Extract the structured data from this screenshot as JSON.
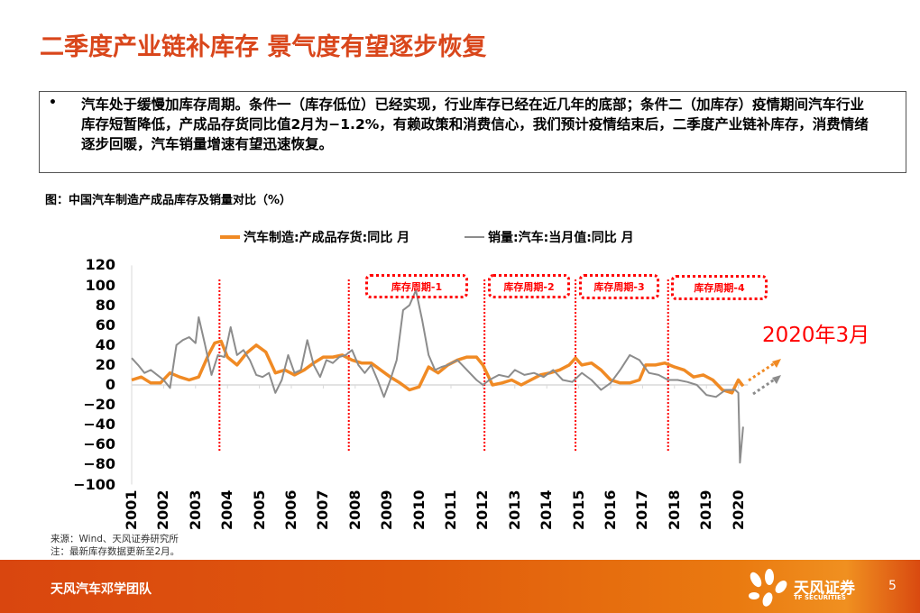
{
  "slide": {
    "title": "二季度产业链补库存 景气度有望逐步恢复",
    "summary": {
      "bullet": "•",
      "text": "汽车处于缓慢加库存周期。条件一（库存低位）已经实现，行业库存已经在近几年的底部；条件二（加库存）疫情期间汽车行业库存短暂降低，产成品存货同比值2月为−1.2%，有赖政策和消费信心，我们预计疫情结束后，二季度产业链补库存，消费情绪逐步回暖，汽车销量增速有望迅速恢复。"
    },
    "figure_caption": "图：中国汽车制造产成品库存及销量对比（%）",
    "source": "来源：Wind、天风证券研究所",
    "note": "注：最新库存数据更新至2月。",
    "annotation": "2020年3月",
    "footer": {
      "team": "天风汽车邓学团队",
      "brand": "天风证券",
      "brand_en": "TF SECURITIES",
      "page": "5"
    }
  },
  "colors": {
    "title": "#d9461b",
    "inventory_series": "#f08a24",
    "sales_series": "#8c8c8c",
    "cycle_marker": "#ff0000",
    "footer": "#e05a0c"
  },
  "chart_data": {
    "type": "line",
    "title": "中国汽车制造产成品库存及销量对比（%）",
    "xlabel": "",
    "ylabel": "%",
    "ylim": [
      -100,
      120
    ],
    "yticks": [
      "120",
      "100",
      "80",
      "60",
      "40",
      "20",
      "0",
      "−20",
      "−40",
      "−60",
      "−80",
      "−100"
    ],
    "xticks": [
      "2001",
      "2002",
      "2003",
      "2004",
      "2005",
      "2006",
      "2007",
      "2008",
      "2009",
      "2010",
      "2011",
      "2012",
      "2013",
      "2014",
      "2015",
      "2016",
      "2017",
      "2018",
      "2019",
      "2020"
    ],
    "legend_position": "top",
    "grid": false,
    "series": [
      {
        "name": "汽车制造:产成品存货:同比 月",
        "color": "#f08a24",
        "x": [
          2001.0,
          2001.3,
          2001.6,
          2001.9,
          2002.2,
          2002.5,
          2002.8,
          2003.1,
          2003.4,
          2003.6,
          2003.8,
          2004.0,
          2004.3,
          2004.6,
          2004.9,
          2005.2,
          2005.5,
          2005.8,
          2006.1,
          2006.4,
          2006.7,
          2007.0,
          2007.3,
          2007.6,
          2007.9,
          2008.2,
          2008.5,
          2008.8,
          2009.1,
          2009.4,
          2009.7,
          2010.0,
          2010.3,
          2010.6,
          2010.9,
          2011.2,
          2011.5,
          2011.8,
          2012.0,
          2012.3,
          2012.6,
          2012.9,
          2013.2,
          2013.5,
          2013.8,
          2014.1,
          2014.4,
          2014.7,
          2014.9,
          2015.1,
          2015.4,
          2015.7,
          2016.0,
          2016.3,
          2016.6,
          2016.9,
          2017.1,
          2017.4,
          2017.7,
          2018.0,
          2018.3,
          2018.6,
          2018.9,
          2019.2,
          2019.5,
          2019.8,
          2020.0,
          2020.15
        ],
        "values": [
          5,
          8,
          2,
          2,
          12,
          8,
          5,
          8,
          30,
          42,
          44,
          28,
          20,
          32,
          40,
          33,
          12,
          15,
          10,
          15,
          22,
          28,
          28,
          30,
          25,
          22,
          22,
          15,
          8,
          2,
          -5,
          -2,
          18,
          12,
          20,
          25,
          28,
          28,
          20,
          0,
          2,
          5,
          0,
          5,
          10,
          12,
          15,
          20,
          27,
          20,
          22,
          15,
          5,
          2,
          2,
          5,
          20,
          20,
          22,
          18,
          15,
          8,
          10,
          5,
          -5,
          -8,
          5,
          -1.2
        ]
      },
      {
        "name": "销量:汽车:当月值:同比 月",
        "color": "#8c8c8c",
        "x": [
          2001.0,
          2001.2,
          2001.4,
          2001.6,
          2001.8,
          2002.0,
          2002.2,
          2002.4,
          2002.6,
          2002.8,
          2003.0,
          2003.1,
          2003.3,
          2003.5,
          2003.7,
          2003.9,
          2004.1,
          2004.3,
          2004.5,
          2004.7,
          2004.9,
          2005.1,
          2005.3,
          2005.5,
          2005.7,
          2005.9,
          2006.1,
          2006.3,
          2006.5,
          2006.7,
          2006.9,
          2007.1,
          2007.3,
          2007.5,
          2007.7,
          2007.9,
          2008.1,
          2008.3,
          2008.5,
          2008.7,
          2008.9,
          2009.1,
          2009.3,
          2009.5,
          2009.7,
          2009.9,
          2010.1,
          2010.3,
          2010.5,
          2010.7,
          2010.9,
          2011.2,
          2011.5,
          2011.8,
          2012.0,
          2012.2,
          2012.5,
          2012.8,
          2013.0,
          2013.3,
          2013.6,
          2013.9,
          2014.2,
          2014.5,
          2014.8,
          2015.1,
          2015.4,
          2015.7,
          2016.0,
          2016.3,
          2016.6,
          2016.9,
          2017.2,
          2017.5,
          2017.8,
          2018.1,
          2018.4,
          2018.7,
          2019.0,
          2019.3,
          2019.6,
          2019.9,
          2020.0,
          2020.05,
          2020.15
        ],
        "values": [
          27,
          20,
          12,
          15,
          10,
          5,
          -3,
          40,
          45,
          48,
          42,
          68,
          40,
          10,
          30,
          28,
          58,
          30,
          35,
          25,
          10,
          8,
          12,
          -8,
          5,
          30,
          12,
          15,
          45,
          20,
          8,
          25,
          22,
          28,
          30,
          35,
          20,
          12,
          20,
          5,
          -12,
          5,
          25,
          75,
          80,
          95,
          65,
          30,
          15,
          18,
          20,
          25,
          15,
          5,
          0,
          5,
          10,
          8,
          15,
          10,
          12,
          8,
          15,
          5,
          3,
          12,
          5,
          -5,
          2,
          15,
          30,
          25,
          12,
          10,
          5,
          5,
          3,
          0,
          -10,
          -12,
          -5,
          -5,
          -8,
          -78,
          -42
        ]
      }
    ],
    "cycle_markers": {
      "boundaries_x": [
        2003.75,
        2007.8,
        2012.05,
        2014.9,
        2017.8
      ],
      "labels": [
        "库存周期-1",
        "库存周期-2",
        "库存周期-3",
        "库存周期-4"
      ]
    }
  }
}
